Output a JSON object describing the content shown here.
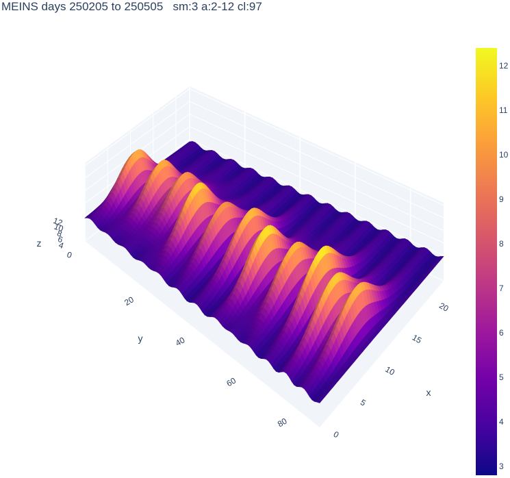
{
  "chart_data": {
    "type": "surface",
    "title": "MEINS days 250205 to 250505   sm:3 a:2-12 cl:97",
    "xlabel": "x",
    "ylabel": "y",
    "zlabel": "z",
    "x_ticks": [
      "0",
      "5",
      "10",
      "15",
      "20"
    ],
    "y_ticks": [
      "20",
      "40",
      "60",
      "80"
    ],
    "z_ticks": [
      "0",
      "4",
      "6",
      "8",
      "10",
      "12"
    ],
    "x_range": [
      0,
      23
    ],
    "y_range": [
      0,
      92
    ],
    "z_range": [
      0,
      12.4
    ],
    "colorbar": {
      "ticks": [
        "3",
        "4",
        "5",
        "6",
        "7",
        "8",
        "9",
        "10",
        "11",
        "12"
      ],
      "range": [
        2.8,
        12.4
      ],
      "colorscale": [
        "#0d0887",
        "#46039f",
        "#7201a8",
        "#9c179e",
        "#bd3786",
        "#d8576b",
        "#ed7953",
        "#fb9f3a",
        "#fdca26",
        "#f0f921"
      ]
    },
    "ridges": [
      {
        "y": 4,
        "peak": 11.0
      },
      {
        "y": 12,
        "peak": 11.2
      },
      {
        "y": 19,
        "peak": 10.6
      },
      {
        "y": 27,
        "peak": 12.1
      },
      {
        "y": 35,
        "peak": 10.3
      },
      {
        "y": 44,
        "peak": 10.9
      },
      {
        "y": 53,
        "peak": 12.3
      },
      {
        "y": 62,
        "peak": 11.4
      },
      {
        "y": 71,
        "peak": 12.0
      },
      {
        "y": 79,
        "peak": 11.3
      },
      {
        "y": 86,
        "peak": 10.8
      }
    ]
  }
}
